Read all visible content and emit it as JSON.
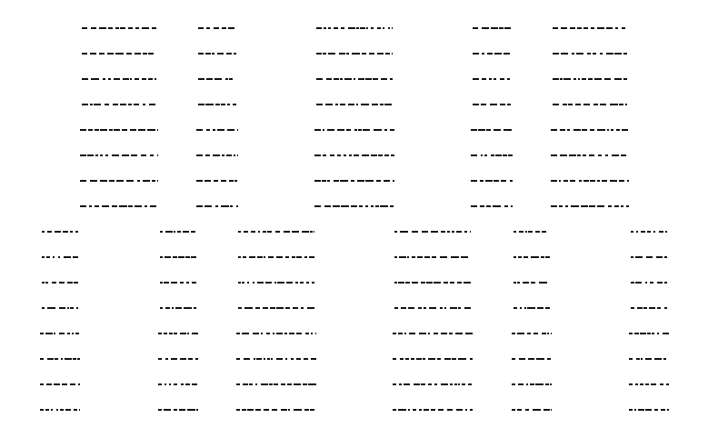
{
  "colors": {
    "background": "#ffffff",
    "mark": "#111111"
  },
  "pattern": {
    "mark_sequences": {
      "top_a": [
        "----- -----",
        "- - -",
        "- - ------ ---"
      ],
      "top_b": [
        "- - -",
        "- - ------",
        "------ -"
      ],
      "bottom_a": [
        "----",
        "----",
        "---------"
      ],
      "bottom_b": [
        "--------",
        "----",
        "----"
      ]
    }
  }
}
